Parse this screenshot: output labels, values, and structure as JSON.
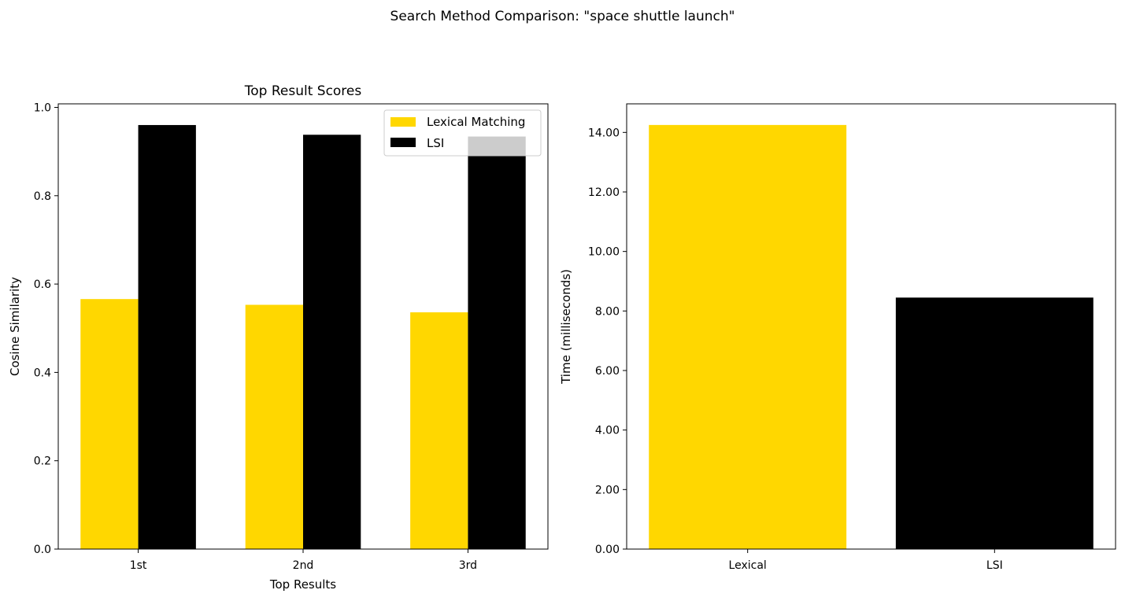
{
  "suptitle": "Search Method Comparison: \"space shuttle launch\"",
  "colors": {
    "lexical": "#FFD700",
    "lsi": "#000000",
    "axis": "#000000",
    "background": "#ffffff"
  },
  "chart_data": [
    {
      "type": "bar",
      "title": "Top Result Scores",
      "xlabel": "Top Results",
      "ylabel": "Cosine Similarity",
      "categories": [
        "1st",
        "2nd",
        "3rd"
      ],
      "series": [
        {
          "name": "Lexical Matching",
          "values": [
            0.566,
            0.553,
            0.536
          ]
        },
        {
          "name": "LSI",
          "values": [
            0.96,
            0.938,
            0.934
          ]
        }
      ],
      "ylim": [
        0,
        1.008
      ],
      "yticks": [
        "0.0",
        "0.2",
        "0.4",
        "0.6",
        "0.8",
        "1.0"
      ],
      "legend": "top-right",
      "grid": false
    },
    {
      "type": "bar",
      "title": "",
      "xlabel": "",
      "ylabel": "Time (milliseconds)",
      "categories": [
        "Lexical",
        "LSI"
      ],
      "values": [
        14.25,
        8.45
      ],
      "ylim": [
        0,
        14.96
      ],
      "yticks": [
        "0.00",
        "2.00",
        "4.00",
        "6.00",
        "8.00",
        "10.00",
        "12.00",
        "14.00"
      ],
      "grid": false
    }
  ]
}
